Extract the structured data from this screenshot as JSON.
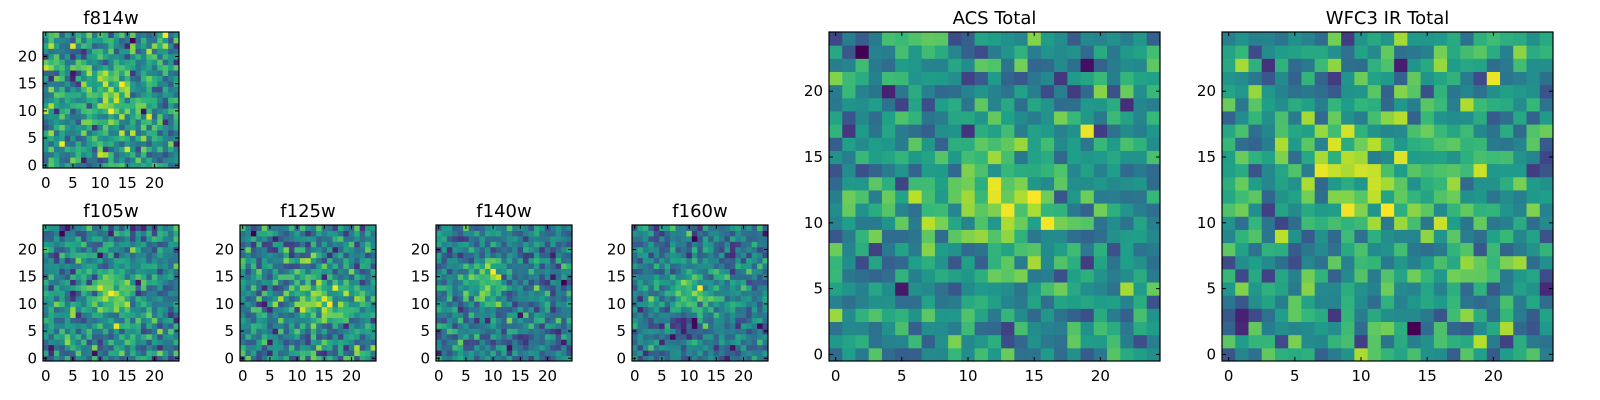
{
  "chart_data": [
    {
      "type": "heatmap",
      "title": "f814w",
      "colormap": "viridis",
      "xlim": [
        -0.5,
        24.5
      ],
      "ylim": [
        -0.5,
        24.5
      ],
      "xticks": [
        0,
        5,
        10,
        15,
        20
      ],
      "yticks": [
        0,
        5,
        10,
        15,
        20
      ],
      "grid_size": [
        25,
        25
      ],
      "features": [
        {
          "x": 12,
          "y": 13,
          "sx": 2.5,
          "sy": 3.0,
          "amp": 1.1
        }
      ],
      "noise": 0.55,
      "seed": 11
    },
    {
      "type": "heatmap",
      "title": "f105w",
      "colormap": "viridis",
      "xlim": [
        -0.5,
        24.5
      ],
      "ylim": [
        -0.5,
        24.5
      ],
      "xticks": [
        0,
        5,
        10,
        15,
        20
      ],
      "yticks": [
        0,
        5,
        10,
        15,
        20
      ],
      "grid_size": [
        25,
        25
      ],
      "features": [
        {
          "x": 12,
          "y": 12,
          "sx": 3.0,
          "sy": 3.0,
          "amp": 1.0
        }
      ],
      "noise": 0.45,
      "seed": 23
    },
    {
      "type": "heatmap",
      "title": "f125w",
      "colormap": "viridis",
      "xlim": [
        -0.5,
        24.5
      ],
      "ylim": [
        -0.5,
        24.5
      ],
      "xticks": [
        0,
        5,
        10,
        15,
        20
      ],
      "yticks": [
        0,
        5,
        10,
        15,
        20
      ],
      "grid_size": [
        25,
        25
      ],
      "features": [
        {
          "x": 15,
          "y": 11,
          "sx": 3.0,
          "sy": 3.5,
          "amp": 0.9
        }
      ],
      "noise": 0.5,
      "seed": 37
    },
    {
      "type": "heatmap",
      "title": "f140w",
      "colormap": "viridis",
      "xlim": [
        -0.5,
        24.5
      ],
      "ylim": [
        -0.5,
        24.5
      ],
      "xticks": [
        0,
        5,
        10,
        15,
        20
      ],
      "yticks": [
        0,
        5,
        10,
        15,
        20
      ],
      "grid_size": [
        25,
        25
      ],
      "features": [
        {
          "x": 9,
          "y": 14,
          "sx": 2.5,
          "sy": 2.5,
          "amp": 1.0
        }
      ],
      "noise": 0.45,
      "seed": 41
    },
    {
      "type": "heatmap",
      "title": "f160w",
      "colormap": "viridis",
      "xlim": [
        -0.5,
        24.5
      ],
      "ylim": [
        -0.5,
        24.5
      ],
      "xticks": [
        0,
        5,
        10,
        15,
        20
      ],
      "yticks": [
        0,
        5,
        10,
        15,
        20
      ],
      "grid_size": [
        25,
        25
      ],
      "features": [
        {
          "x": 11,
          "y": 12,
          "sx": 3.5,
          "sy": 3.0,
          "amp": 0.9
        },
        {
          "x": 9,
          "y": 6,
          "sx": 1.5,
          "sy": 1.5,
          "amp": -1.2
        }
      ],
      "noise": 0.45,
      "seed": 53
    },
    {
      "type": "heatmap",
      "title": "ACS Total",
      "colormap": "viridis",
      "xlim": [
        -0.5,
        24.5
      ],
      "ylim": [
        -0.5,
        24.5
      ],
      "xticks": [
        0,
        5,
        10,
        15,
        20
      ],
      "yticks": [
        0,
        5,
        10,
        15,
        20
      ],
      "grid_size": [
        25,
        25
      ],
      "features": [
        {
          "x": 12,
          "y": 12,
          "sx": 2.5,
          "sy": 3.0,
          "amp": 1.0
        },
        {
          "x": 15,
          "y": 11,
          "sx": 2.0,
          "sy": 1.0,
          "amp": 0.5
        }
      ],
      "noise": 0.5,
      "seed": 67
    },
    {
      "type": "heatmap",
      "title": "WFC3 IR Total",
      "colormap": "viridis",
      "xlim": [
        -0.5,
        24.5
      ],
      "ylim": [
        -0.5,
        24.5
      ],
      "xticks": [
        0,
        5,
        10,
        15,
        20
      ],
      "yticks": [
        0,
        5,
        10,
        15,
        20
      ],
      "grid_size": [
        25,
        25
      ],
      "features": [
        {
          "x": 11,
          "y": 13,
          "sx": 3.5,
          "sy": 3.0,
          "amp": 0.9
        }
      ],
      "noise": 0.5,
      "seed": 79
    }
  ]
}
